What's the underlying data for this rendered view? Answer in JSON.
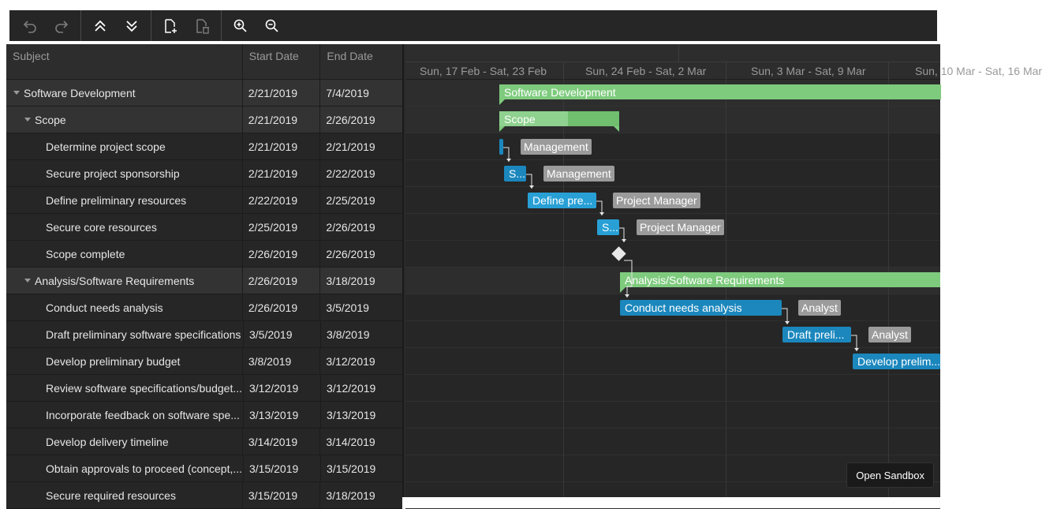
{
  "toolbar": {
    "buttons": [
      {
        "icon": "undo-icon",
        "label": "Undo"
      },
      {
        "icon": "redo-icon",
        "label": "Redo"
      },
      {
        "icon": "expand-all-icon",
        "label": "Collapse all"
      },
      {
        "icon": "collapse-all-icon",
        "label": "Expand all"
      },
      {
        "icon": "add-task-icon",
        "label": "Add task"
      },
      {
        "icon": "delete-task-icon",
        "label": "Delete task"
      },
      {
        "icon": "zoom-in-icon",
        "label": "Zoom in"
      },
      {
        "icon": "zoom-out-icon",
        "label": "Zoom out"
      }
    ]
  },
  "grid": {
    "headers": {
      "subject": "Subject",
      "start": "Start Date",
      "end": "End Date"
    },
    "rows": [
      {
        "subject": "Software Development",
        "start": "2/21/2019",
        "end": "7/4/2019",
        "level": 0,
        "summary": true
      },
      {
        "subject": "Scope",
        "start": "2/21/2019",
        "end": "2/26/2019",
        "level": 1,
        "summary": true
      },
      {
        "subject": "Determine project scope",
        "start": "2/21/2019",
        "end": "2/21/2019",
        "level": 2,
        "summary": false
      },
      {
        "subject": "Secure project sponsorship",
        "start": "2/21/2019",
        "end": "2/22/2019",
        "level": 2,
        "summary": false
      },
      {
        "subject": "Define preliminary resources",
        "start": "2/22/2019",
        "end": "2/25/2019",
        "level": 2,
        "summary": false
      },
      {
        "subject": "Secure core resources",
        "start": "2/25/2019",
        "end": "2/26/2019",
        "level": 2,
        "summary": false
      },
      {
        "subject": "Scope complete",
        "start": "2/26/2019",
        "end": "2/26/2019",
        "level": 2,
        "summary": false
      },
      {
        "subject": "Analysis/Software Requirements",
        "start": "2/26/2019",
        "end": "3/18/2019",
        "level": 1,
        "summary": true
      },
      {
        "subject": "Conduct needs analysis",
        "start": "2/26/2019",
        "end": "3/5/2019",
        "level": 2,
        "summary": false
      },
      {
        "subject": "Draft preliminary software specifications",
        "start": "3/5/2019",
        "end": "3/8/2019",
        "level": 2,
        "summary": false
      },
      {
        "subject": "Develop preliminary budget",
        "start": "3/8/2019",
        "end": "3/12/2019",
        "level": 2,
        "summary": false
      },
      {
        "subject": "Review software specifications/budget...",
        "start": "3/12/2019",
        "end": "3/12/2019",
        "level": 2,
        "summary": false
      },
      {
        "subject": "Incorporate feedback on software spe...",
        "start": "3/13/2019",
        "end": "3/13/2019",
        "level": 2,
        "summary": false
      },
      {
        "subject": "Develop delivery timeline",
        "start": "3/14/2019",
        "end": "3/14/2019",
        "level": 2,
        "summary": false
      },
      {
        "subject": "Obtain approvals to proceed (concept,...",
        "start": "3/15/2019",
        "end": "3/15/2019",
        "level": 2,
        "summary": false
      },
      {
        "subject": "Secure required resources",
        "start": "3/15/2019",
        "end": "3/18/2019",
        "level": 2,
        "summary": false
      }
    ]
  },
  "timeline": {
    "weeks": [
      "Sun, 17 Feb - Sat, 23 Feb",
      "Sun, 24 Feb - Sat, 2 Mar",
      "Sun, 3 Mar - Sat, 9 Mar",
      "Sun, 10 Mar - Sat, 16 Mar"
    ],
    "bars": [
      {
        "label": "Software Development",
        "kind": "summary",
        "row": 0
      },
      {
        "label": "Scope",
        "kind": "summary",
        "row": 1
      },
      {
        "label": "",
        "kind": "task",
        "row": 2,
        "resource": "Management"
      },
      {
        "label": "S...",
        "kind": "task",
        "row": 3,
        "resource": "Management"
      },
      {
        "label": "Define pre...",
        "kind": "task",
        "row": 4,
        "resource": "Project Manager"
      },
      {
        "label": "S...",
        "kind": "task",
        "row": 5,
        "resource": "Project Manager"
      },
      {
        "label": "",
        "kind": "milestone",
        "row": 6
      },
      {
        "label": "Analysis/Software Requirements",
        "kind": "summary",
        "row": 7
      },
      {
        "label": "Conduct needs analysis",
        "kind": "task",
        "row": 8,
        "resource": "Analyst"
      },
      {
        "label": "Draft preli...",
        "kind": "task",
        "row": 9,
        "resource": "Analyst"
      },
      {
        "label": "Develop prelim...",
        "kind": "task",
        "row": 10
      }
    ]
  },
  "sandbox_button": "Open Sandbox"
}
